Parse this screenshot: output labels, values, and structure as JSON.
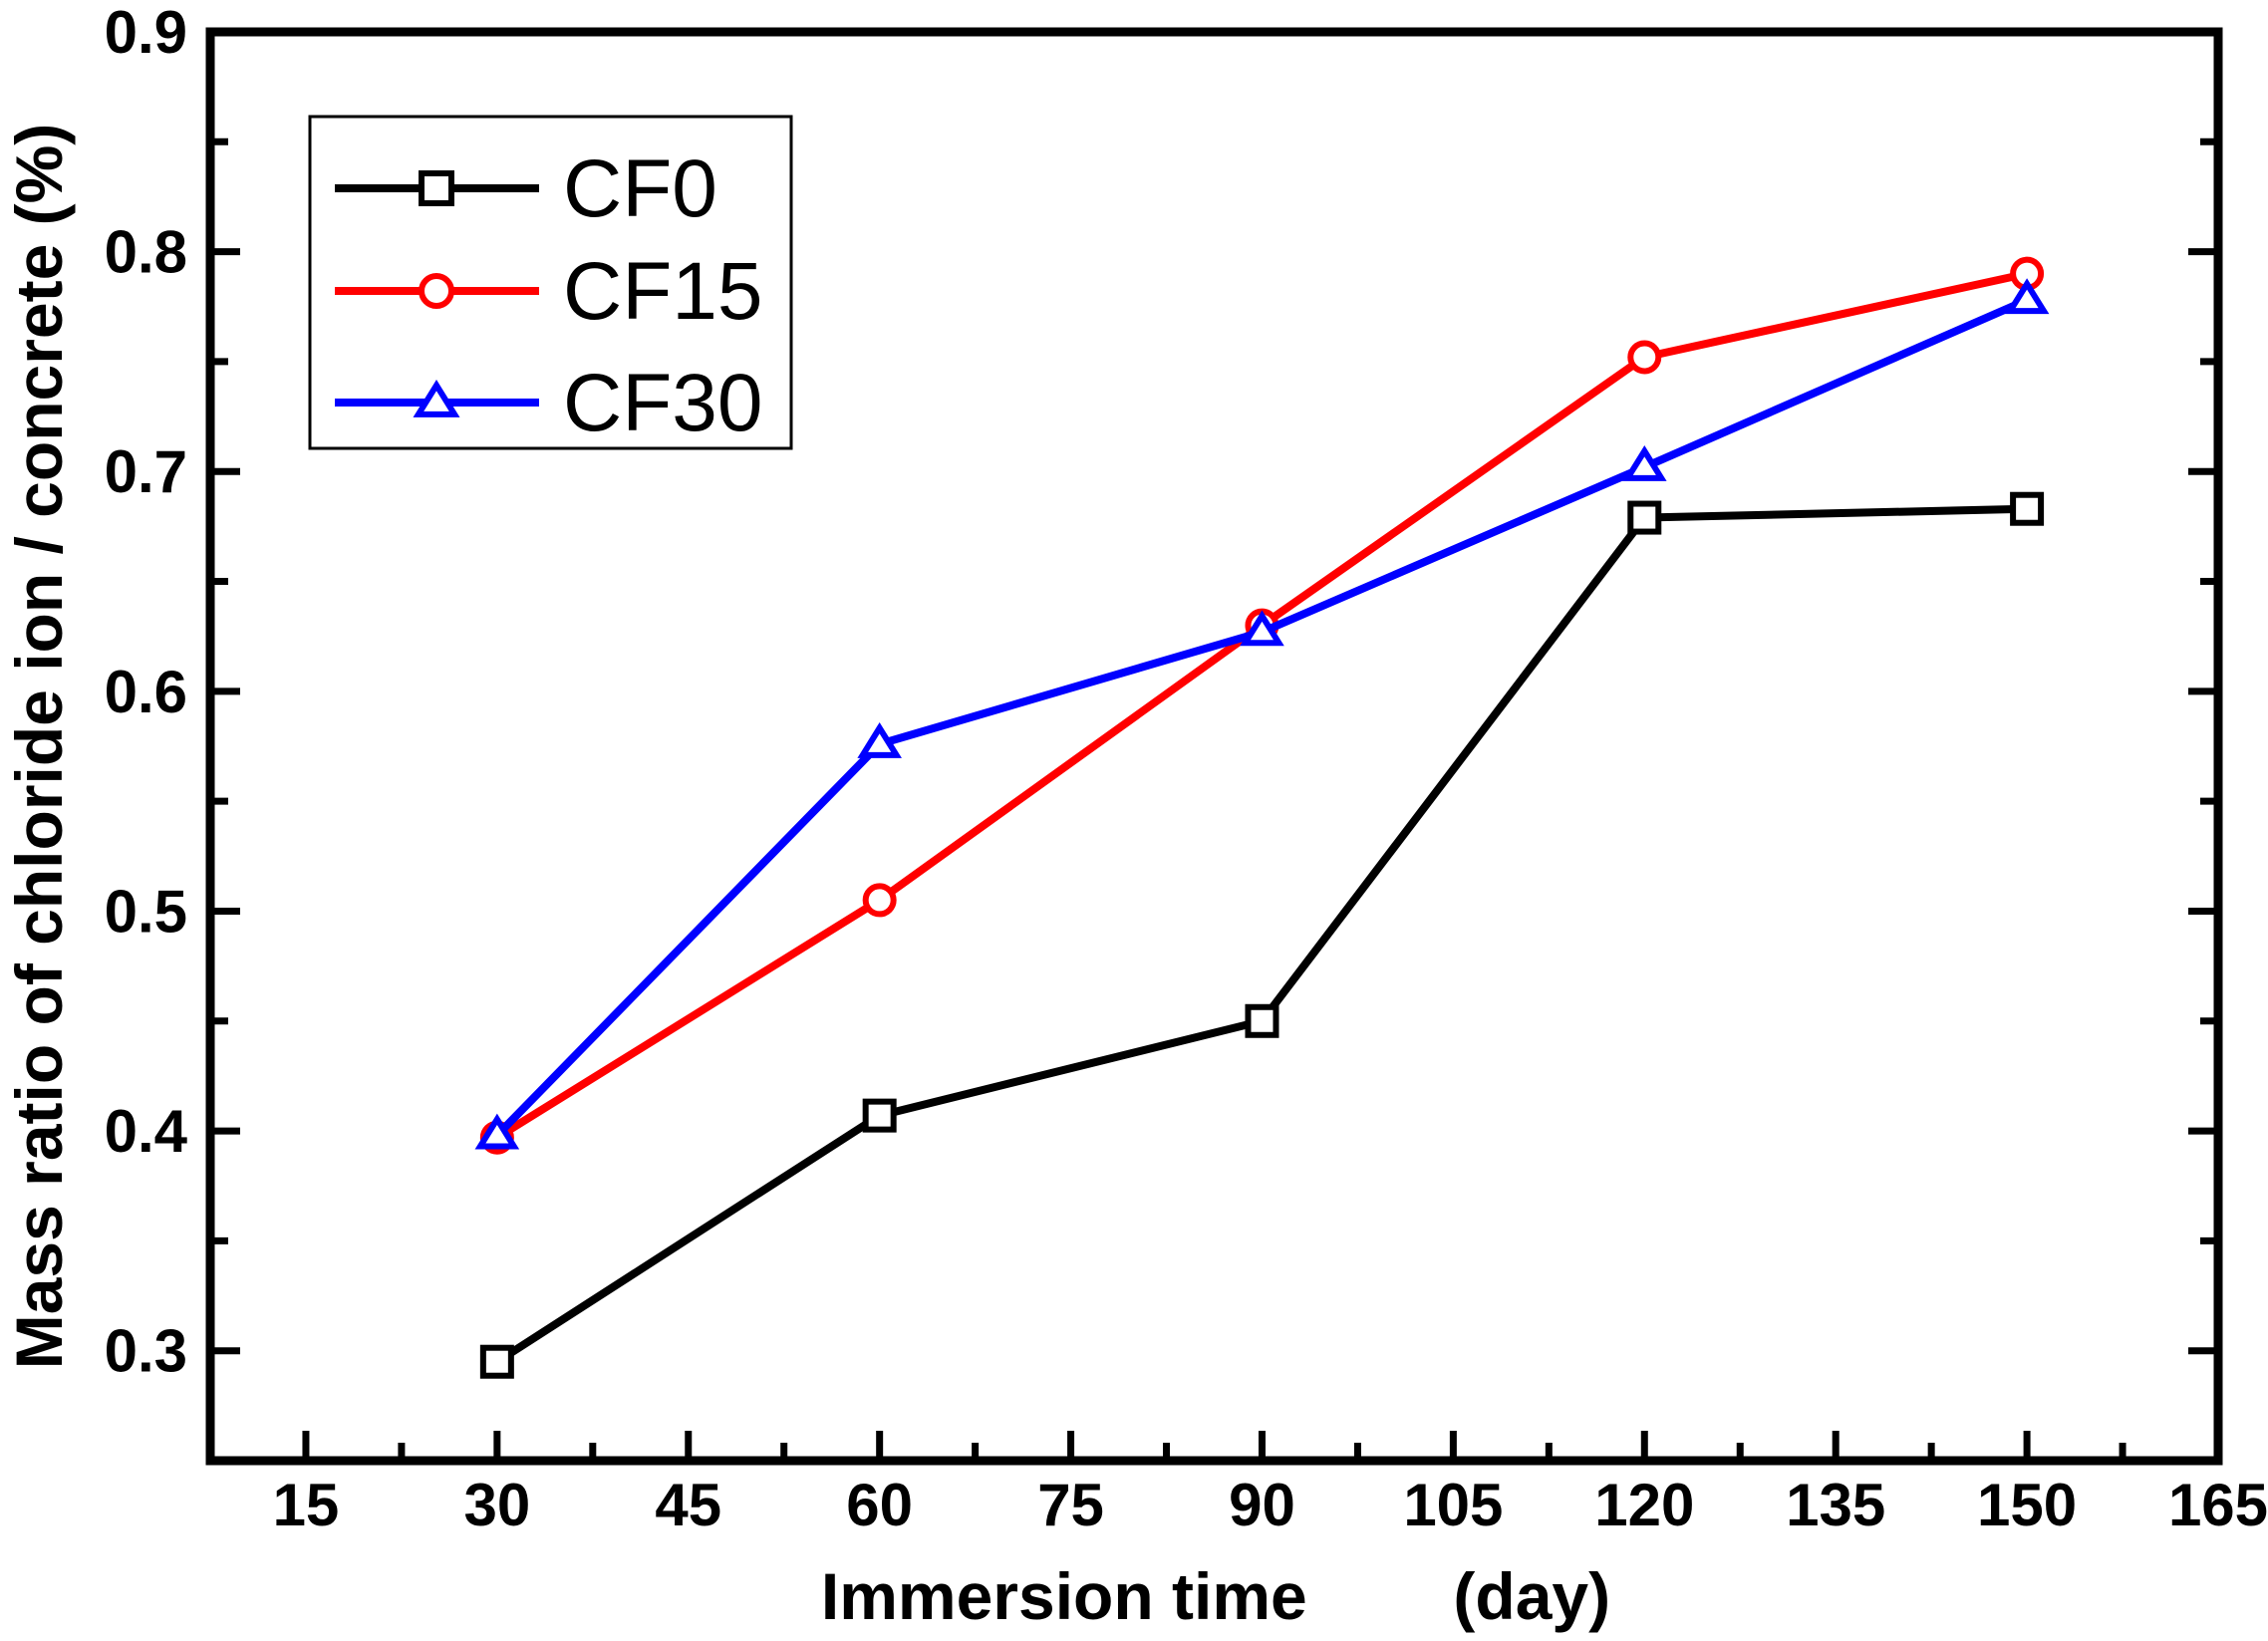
{
  "chart_data": {
    "type": "line",
    "title": "",
    "xlabel": "Immersion time        (day)",
    "ylabel": "Mass ratio of chloride ion / concrete (%)",
    "xlim": [
      7.5,
      165
    ],
    "ylim": [
      0.25,
      0.9
    ],
    "x_ticks": [
      15,
      30,
      45,
      60,
      75,
      90,
      105,
      120,
      135,
      150,
      165
    ],
    "y_ticks": [
      0.3,
      0.4,
      0.5,
      0.6,
      0.7,
      0.8,
      0.9
    ],
    "x_tick_labels": [
      "15",
      "30",
      "45",
      "60",
      "75",
      "90",
      "105",
      "120",
      "135",
      "150",
      "165"
    ],
    "y_tick_labels": [
      "0.3",
      "0.4",
      "0.5",
      "0.6",
      "0.7",
      "0.8",
      "0.9"
    ],
    "x": [
      30,
      60,
      90,
      120,
      150
    ],
    "series": [
      {
        "name": "CF0",
        "color": "#000000",
        "marker": "square",
        "values": [
          0.295,
          0.407,
          0.45,
          0.679,
          0.683
        ]
      },
      {
        "name": "CF15",
        "color": "#ff0000",
        "marker": "circle",
        "values": [
          0.397,
          0.505,
          0.63,
          0.752,
          0.79
        ]
      },
      {
        "name": "CF30",
        "color": "#0000ff",
        "marker": "triangle",
        "values": [
          0.398,
          0.576,
          0.627,
          0.702,
          0.778
        ]
      }
    ],
    "legend": {
      "position": "top-left",
      "entries": [
        "CF0",
        "CF15",
        "CF30"
      ]
    },
    "grid": false
  }
}
